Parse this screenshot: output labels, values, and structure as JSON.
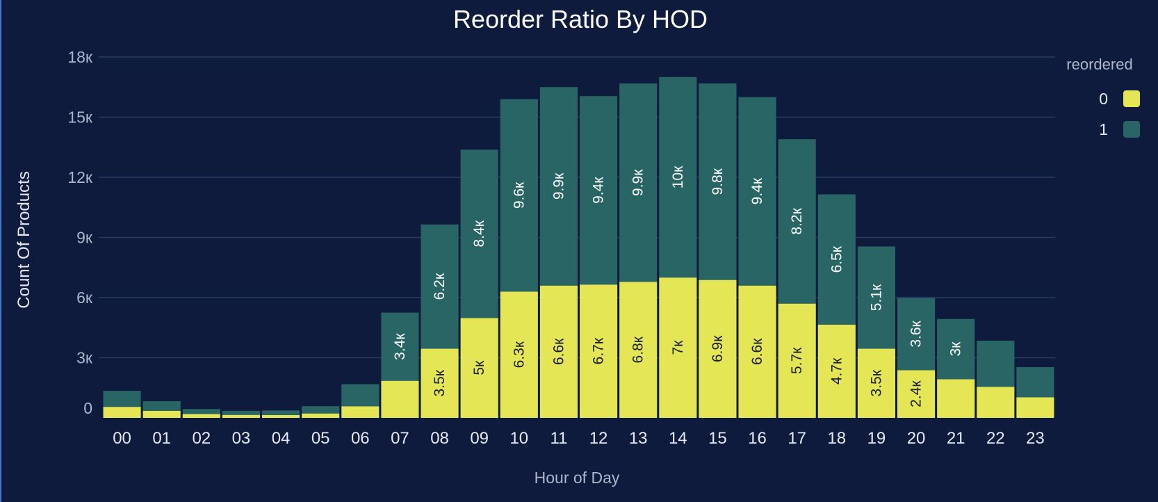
{
  "chart_data": {
    "type": "bar",
    "stacked": true,
    "title": "Reorder Ratio By HOD",
    "xlabel": "Hour of Day",
    "ylabel": "Count Of Products",
    "categories": [
      "00",
      "01",
      "02",
      "03",
      "04",
      "05",
      "06",
      "07",
      "08",
      "09",
      "10",
      "11",
      "12",
      "13",
      "14",
      "15",
      "16",
      "17",
      "18",
      "19",
      "20",
      "21",
      "22",
      "23"
    ],
    "ylim": [
      0,
      18000
    ],
    "yticks": [
      {
        "value": 0,
        "label": "0"
      },
      {
        "value": 3000,
        "label": "3к"
      },
      {
        "value": 6000,
        "label": "6к"
      },
      {
        "value": 9000,
        "label": "9к"
      },
      {
        "value": 12000,
        "label": "12к"
      },
      {
        "value": 15000,
        "label": "15к"
      },
      {
        "value": 18000,
        "label": "18к"
      }
    ],
    "grid": true,
    "legend": {
      "title": "reordered",
      "position": "top-right"
    },
    "series": [
      {
        "name": "0",
        "color": "#e4e655",
        "label_color": "#1a1d2e",
        "values": [
          550,
          350,
          190,
          150,
          140,
          220,
          580,
          1850,
          3450,
          4980,
          6300,
          6600,
          6650,
          6780,
          7000,
          6880,
          6600,
          5700,
          4650,
          3450,
          2380,
          1930,
          1550,
          1030
        ],
        "labels": [
          "",
          "",
          "",
          "",
          "",
          "",
          "",
          "",
          "3.5к",
          "5к",
          "6.3к",
          "6.6к",
          "6.7к",
          "6.8к",
          "7к",
          "6.9к",
          "6.6к",
          "5.7к",
          "4.7к",
          "3.5к",
          "2.4к",
          "",
          "",
          ""
        ]
      },
      {
        "name": "1",
        "color": "#2a6566",
        "label_color": "#ffffff",
        "values": [
          800,
          480,
          250,
          200,
          230,
          360,
          1100,
          3400,
          6200,
          8400,
          9600,
          9900,
          9400,
          9900,
          10000,
          9800,
          9400,
          8200,
          6500,
          5100,
          3600,
          3000,
          2300,
          1500
        ],
        "labels": [
          "",
          "",
          "",
          "",
          "",
          "",
          "",
          "3.4к",
          "6.2к",
          "8.4к",
          "9.6к",
          "9.9к",
          "9.4к",
          "9.9к",
          "10к",
          "9.8к",
          "9.4к",
          "8.2к",
          "6.5к",
          "5.1к",
          "3.6к",
          "3к",
          "",
          ""
        ]
      }
    ]
  }
}
